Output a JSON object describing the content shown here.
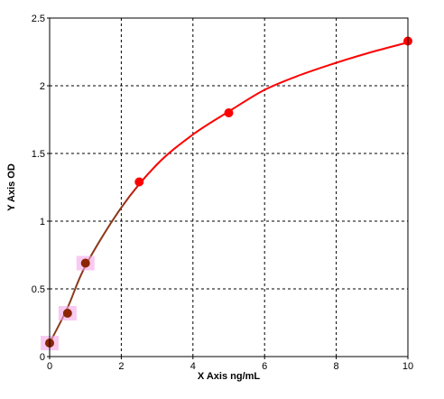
{
  "chart_data": {
    "type": "scatter",
    "xlabel": "X Axis ng/mL",
    "ylabel": "Y Axis OD",
    "xlim": [
      0,
      10
    ],
    "ylim": [
      0,
      2.5
    ],
    "x_ticks": [
      0,
      2,
      4,
      6,
      8,
      10
    ],
    "y_ticks": [
      0,
      0.5,
      1,
      1.5,
      2,
      2.5
    ],
    "x_tick_labels": [
      "0",
      "2",
      "4",
      "6",
      "8",
      "10"
    ],
    "y_tick_labels": [
      "0",
      "0.5",
      "1",
      "1.5",
      "2",
      "2.5"
    ],
    "grid": true,
    "points": [
      {
        "x": 0,
        "y": 0.1
      },
      {
        "x": 0.5,
        "y": 0.32
      },
      {
        "x": 1,
        "y": 0.69
      },
      {
        "x": 2.5,
        "y": 1.29
      },
      {
        "x": 5,
        "y": 1.8
      },
      {
        "x": 10,
        "y": 2.33
      }
    ],
    "fit_curve": {
      "type": "smooth",
      "points": [
        {
          "x": 0,
          "y": 0.1
        },
        {
          "x": 0.5,
          "y": 0.36
        },
        {
          "x": 1,
          "y": 0.67
        },
        {
          "x": 2,
          "y": 1.1
        },
        {
          "x": 3,
          "y": 1.42
        },
        {
          "x": 4,
          "y": 1.64
        },
        {
          "x": 5,
          "y": 1.81
        },
        {
          "x": 6,
          "y": 1.97
        },
        {
          "x": 7,
          "y": 2.08
        },
        {
          "x": 8,
          "y": 2.17
        },
        {
          "x": 9,
          "y": 2.25
        },
        {
          "x": 10,
          "y": 2.32
        }
      ]
    },
    "colors": {
      "curve": "#ff0000",
      "curve_low": "#8b3a1a",
      "marker": "#ff0000",
      "marker_low": "#8b2500",
      "halo": "#f4a6e8",
      "grid": "#000000",
      "axis": "#000000"
    }
  }
}
